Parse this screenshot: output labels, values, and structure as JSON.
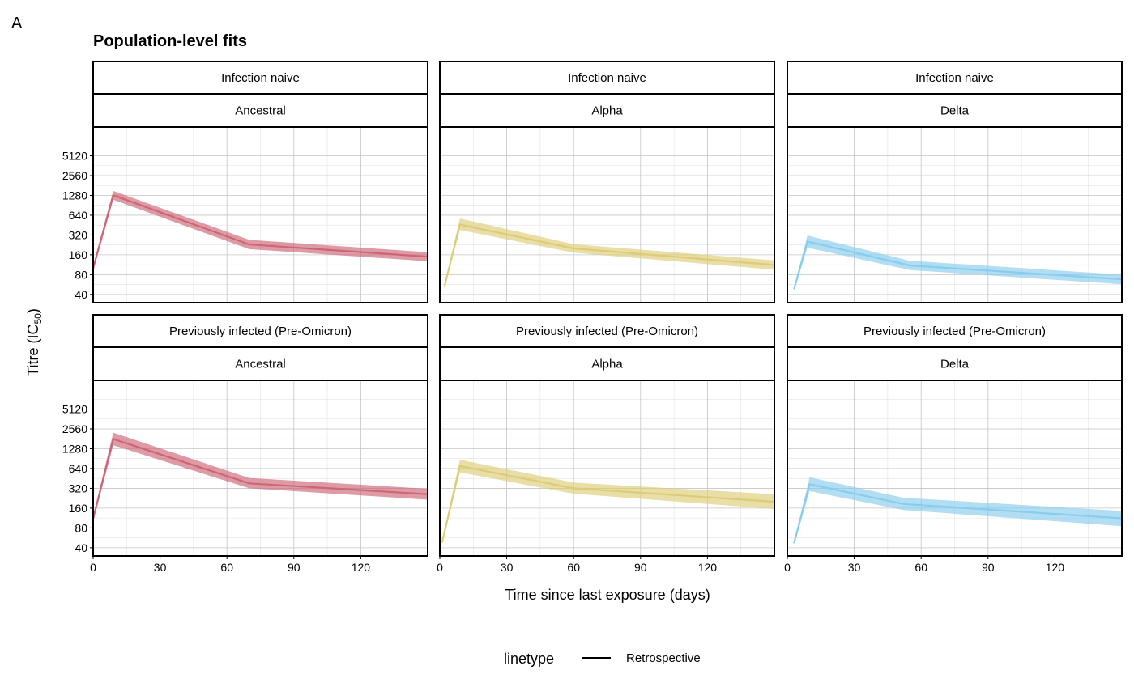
{
  "figure": {
    "panel_tag": "A",
    "title": "Population-level fits"
  },
  "chart_data": {
    "type": "line",
    "title": "Population-level fits",
    "xlabel": "Time since last exposure (days)",
    "ylabel_main": "Titre (IC",
    "ylabel_sub": "50",
    "ylabel_close": ")",
    "y_scale": "log2",
    "xlim": [
      0,
      150
    ],
    "ylim": [
      30,
      14000
    ],
    "x_ticks": [
      0,
      30,
      60,
      90,
      120
    ],
    "y_ticks": [
      40,
      80,
      160,
      320,
      640,
      1280,
      2560,
      5120
    ],
    "grid": true,
    "legend": {
      "placement": "bottom",
      "title": "linetype",
      "entries": [
        "Retrospective"
      ]
    },
    "rows": [
      "Infection naive",
      "Previously infected (Pre-Omicron)"
    ],
    "cols": [
      "Ancestral",
      "Alpha",
      "Delta"
    ],
    "colors": {
      "Ancestral": "#cc6677",
      "Alpha": "#ddcc77",
      "Delta": "#88ccee"
    },
    "panels": [
      {
        "row": "Infection naive",
        "col": "Ancestral",
        "x": [
          0,
          9,
          70,
          150
        ],
        "y": [
          100,
          1290,
          230,
          150
        ],
        "lower": [
          90,
          1100,
          195,
          128
        ],
        "upper": [
          112,
          1500,
          270,
          175
        ]
      },
      {
        "row": "Infection naive",
        "col": "Alpha",
        "x": [
          2,
          9,
          60,
          150
        ],
        "y": [
          52,
          460,
          200,
          112
        ],
        "lower": [
          50,
          380,
          172,
          95
        ],
        "upper": [
          56,
          570,
          232,
          132
        ]
      },
      {
        "row": "Infection naive",
        "col": "Delta",
        "x": [
          3,
          9,
          55,
          150
        ],
        "y": [
          48,
          255,
          110,
          68
        ],
        "lower": [
          46,
          205,
          94,
          57
        ],
        "upper": [
          51,
          315,
          130,
          80
        ]
      },
      {
        "row": "Previously infected (Pre-Omicron)",
        "col": "Ancestral",
        "x": [
          0,
          9,
          70,
          150
        ],
        "y": [
          110,
          1800,
          380,
          260
        ],
        "lower": [
          100,
          1450,
          320,
          215
        ],
        "upper": [
          122,
          2250,
          460,
          315
        ]
      },
      {
        "row": "Previously infected (Pre-Omicron)",
        "col": "Alpha",
        "x": [
          1,
          9,
          60,
          150
        ],
        "y": [
          48,
          700,
          320,
          200
        ],
        "lower": [
          45,
          560,
          265,
          155
        ],
        "upper": [
          52,
          870,
          390,
          260
        ]
      },
      {
        "row": "Previously infected (Pre-Omicron)",
        "col": "Delta",
        "x": [
          3,
          10,
          52,
          150
        ],
        "y": [
          47,
          370,
          185,
          112
        ],
        "lower": [
          44,
          290,
          150,
          85
        ],
        "upper": [
          50,
          470,
          230,
          145
        ]
      }
    ]
  }
}
